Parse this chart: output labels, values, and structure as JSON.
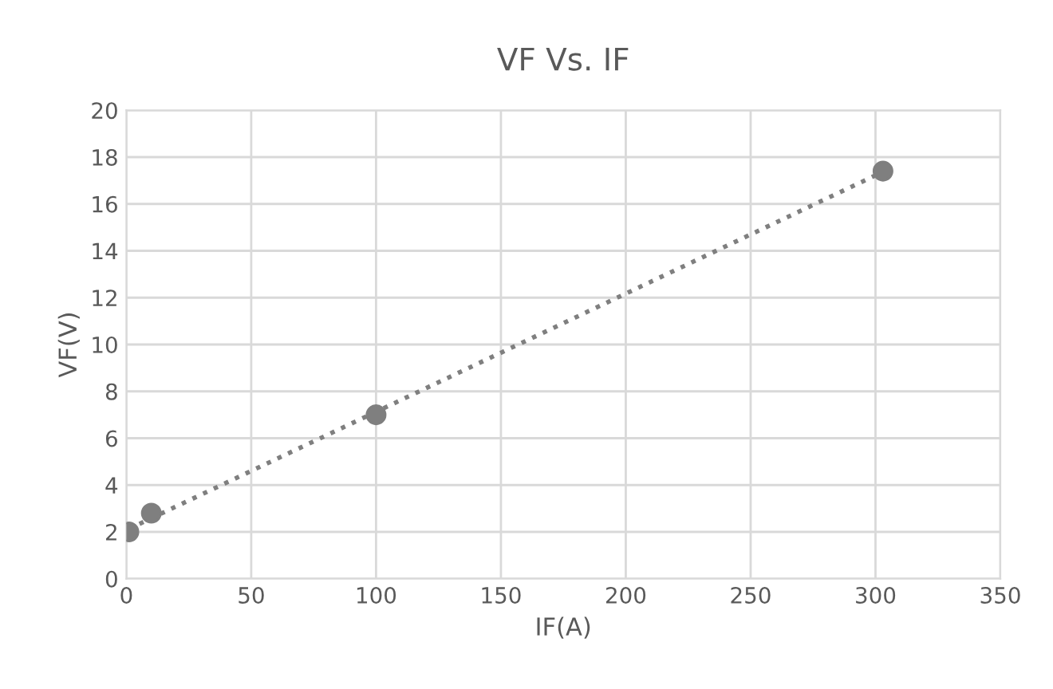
{
  "chart_data": {
    "type": "scatter",
    "title": "VF Vs. IF",
    "xlabel": "IF(A)",
    "ylabel": "VF(V)",
    "xlim": [
      0,
      350
    ],
    "xticks": [
      0,
      50,
      100,
      150,
      200,
      250,
      300,
      350
    ],
    "ylim": [
      0,
      20
    ],
    "yticks": [
      0,
      2,
      4,
      6,
      8,
      10,
      12,
      14,
      16,
      18,
      20
    ],
    "grid": true,
    "legend": false,
    "series": [
      {
        "color": "#7f7f7f",
        "marker": "circle",
        "x": [
          1,
          10,
          100,
          303
        ],
        "values": [
          2,
          2.8,
          7,
          17.4
        ]
      },
      {
        "type": "line",
        "color": "#7f7f7f",
        "line_style": "dotted",
        "marker": "none",
        "x": [
          1,
          303
        ],
        "values": [
          2.13,
          17.37
        ]
      }
    ]
  }
}
